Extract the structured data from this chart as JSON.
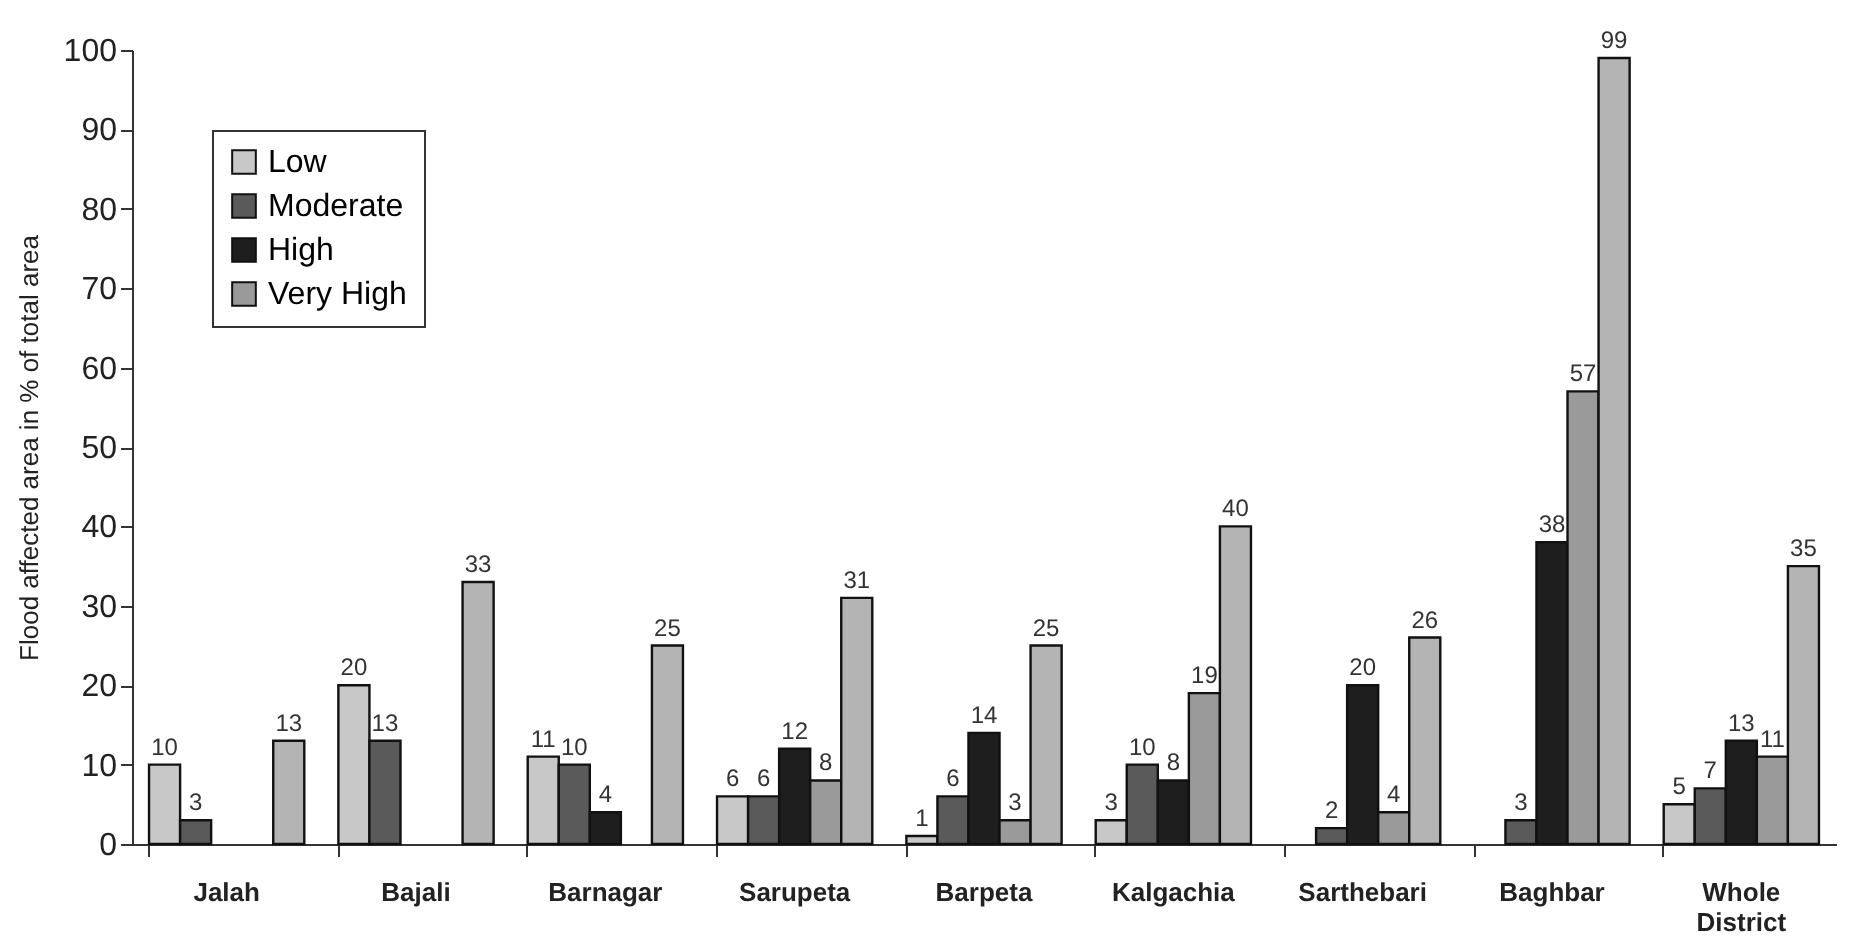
{
  "chart_data": {
    "type": "bar",
    "ylabel": "Flood affected area in % of total area",
    "categories": [
      "Jalah",
      "Bajali",
      "Barnagar",
      "Sarupeta",
      "Barpeta",
      "Kalgachia",
      "Sarthebari",
      "Baghbar",
      "Whole District"
    ],
    "series": [
      {
        "name": "Low",
        "color": "#c8c8c8",
        "values": [
          10,
          20,
          11,
          6,
          1,
          3,
          null,
          null,
          5
        ]
      },
      {
        "name": "Moderate",
        "color": "#5a5a5a",
        "values": [
          3,
          13,
          10,
          6,
          6,
          10,
          2,
          3,
          7
        ]
      },
      {
        "name": "High",
        "color": "#1e1e1e",
        "values": [
          null,
          null,
          4,
          12,
          14,
          8,
          20,
          38,
          13
        ]
      },
      {
        "name": "Very High",
        "color": "#9a9a9a",
        "values": [
          null,
          null,
          null,
          8,
          3,
          19,
          4,
          57,
          11
        ]
      },
      {
        "color": "#b4b4b4",
        "values": [
          13,
          33,
          25,
          31,
          25,
          40,
          26,
          99,
          35
        ]
      }
    ],
    "ylim": [
      0,
      100
    ],
    "yticks": [
      0,
      10,
      20,
      30,
      40,
      50,
      60,
      70,
      80,
      90,
      100
    ],
    "grid": false,
    "legend": "top left",
    "data_labels": true
  }
}
